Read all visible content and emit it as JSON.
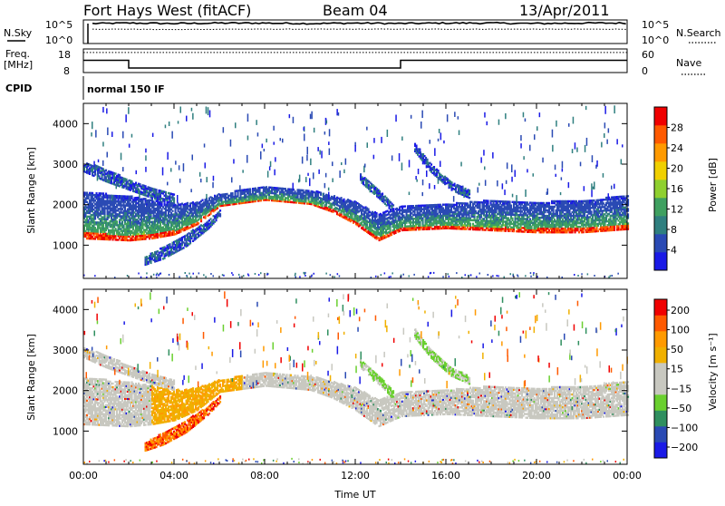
{
  "header": {
    "radar": "Fort Hays West (fitACF)",
    "beam": "Beam 04",
    "date": "13/Apr/2011"
  },
  "top_panels": {
    "nsky_label": "N.Sky",
    "nsearch_label": "N.Search",
    "nsky_ticks": [
      "10^5",
      "10^0"
    ],
    "nsearch_ticks": [
      "10^5",
      "10^0"
    ],
    "freq_label_1": "Freq.",
    "freq_label_2": "[MHz]",
    "freq_ticks": [
      "18",
      "8"
    ],
    "nave_label": "Nave",
    "nave_ticks": [
      "60",
      "0"
    ],
    "cpid_label": "CPID",
    "cpid_value": "normal 150 IF"
  },
  "colors": {
    "power": [
      "#1a1ae6",
      "#2a4ab4",
      "#2f7f7f",
      "#3fa060",
      "#8fd02f",
      "#f0d000",
      "#ff9a00",
      "#ff5a00",
      "#f00000"
    ],
    "velocity": [
      "#f00000",
      "#ff5a00",
      "#ff9a00",
      "#f0b000",
      "#c8c8c0",
      "#c8c8c0",
      "#6ad02f",
      "#2f8f5f",
      "#2a4ab4",
      "#1a1ae6"
    ]
  },
  "chart_data": [
    {
      "type": "line",
      "name": "nsky_nsearch",
      "x": [
        0,
        0.5,
        2,
        4,
        6,
        8,
        10,
        12,
        14,
        16,
        18,
        20,
        22,
        24
      ],
      "series": [
        {
          "name": "N.Sky",
          "values": [
            4.6,
            4.6,
            4.7,
            4.6,
            4.7,
            4.7,
            4.6,
            4.7,
            4.6,
            4.7,
            4.7,
            4.6,
            4.7,
            4.7
          ]
        },
        {
          "name": "N.Search",
          "values": [
            3.3,
            3.3,
            3.3,
            3.2,
            3.3,
            3.3,
            3.3,
            3.3,
            3.3,
            3.3,
            3.3,
            3.3,
            3.3,
            3.3
          ]
        }
      ]
    },
    {
      "type": "line",
      "name": "freq_nave",
      "x": [
        0,
        2,
        2,
        14,
        14,
        24
      ],
      "series": [
        {
          "name": "Freq.",
          "values": [
            15.5,
            15.5,
            10.8,
            10.8,
            15.5,
            15.5
          ]
        },
        {
          "name": "Nave",
          "values": [
            55,
            55,
            55,
            55,
            55,
            55
          ]
        }
      ]
    },
    {
      "type": "heatmap",
      "title": "Power",
      "xlabel": "",
      "ylabel": "Slant Range [km]",
      "xlim": [
        0,
        24
      ],
      "ylim": [
        180,
        4500
      ],
      "x_ticks": [],
      "y_ticks": [
        1000,
        2000,
        3000,
        4000
      ],
      "colorbar_label": "Power [dB]",
      "colorbar_ticks": [
        "4",
        "8",
        "12",
        "16",
        "20",
        "24",
        "28"
      ],
      "ranges": [
        {
          "x": [
            0,
            2,
            3,
            4,
            5,
            6,
            8,
            10,
            11,
            12,
            13,
            14,
            16,
            18,
            20,
            22,
            24
          ],
          "top": [
            2300,
            2200,
            2100,
            2000,
            2050,
            2250,
            2450,
            2350,
            2200,
            2050,
            1750,
            1950,
            2000,
            2100,
            2050,
            2100,
            2200
          ],
          "bottom": [
            1150,
            1100,
            1150,
            1250,
            1500,
            1950,
            2100,
            2000,
            1800,
            1500,
            1100,
            1350,
            1400,
            1350,
            1300,
            1300,
            1380
          ]
        },
        {
          "x": [
            0,
            1,
            2,
            3,
            4
          ],
          "top": [
            3050,
            2850,
            2600,
            2400,
            2250
          ],
          "bottom": [
            2800,
            2550,
            2350,
            2150,
            2000
          ]
        },
        {
          "x": [
            2.7,
            3.5,
            4.5,
            5.5,
            6
          ],
          "top": [
            700,
            950,
            1250,
            1600,
            1850
          ],
          "bottom": [
            500,
            650,
            950,
            1400,
            1700
          ]
        },
        {
          "x": [
            14.6,
            15.3,
            16.2,
            17.0
          ],
          "top": [
            3500,
            3000,
            2550,
            2350
          ],
          "bottom": [
            3300,
            2800,
            2350,
            2150
          ]
        },
        {
          "x": [
            12.2,
            12.7,
            13.2,
            13.7
          ],
          "top": [
            2750,
            2500,
            2250,
            1950
          ],
          "bottom": [
            2550,
            2300,
            2050,
            1750
          ]
        }
      ]
    },
    {
      "type": "heatmap",
      "title": "Velocity",
      "xlabel": "Time UT",
      "ylabel": "Slant Range [km]",
      "xlim": [
        0,
        24
      ],
      "ylim": [
        180,
        4500
      ],
      "x_ticks": [
        "00:00",
        "04:00",
        "08:00",
        "12:00",
        "16:00",
        "20:00",
        "00:00"
      ],
      "y_ticks": [
        1000,
        2000,
        3000,
        4000
      ],
      "colorbar_label": "Velocity [m s⁻¹]",
      "colorbar_ticks": [
        "200",
        "100",
        "50",
        "15",
        "−15",
        "−50",
        "−100",
        "−200"
      ]
    }
  ]
}
